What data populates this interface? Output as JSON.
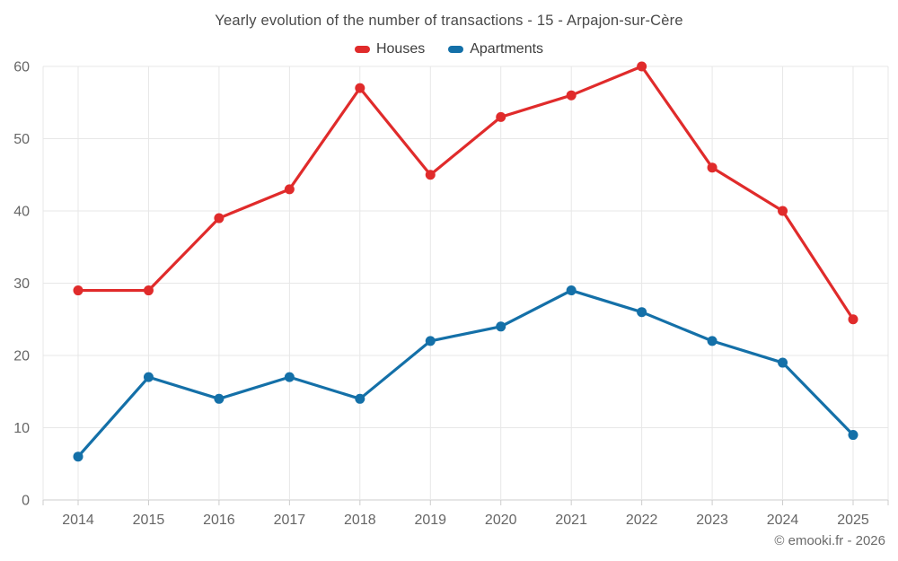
{
  "title": "Yearly evolution of the number of transactions - 15 - Arpajon-sur-Cère",
  "copyright": "© emooki.fr - 2026",
  "colors": {
    "houses": "#e02b2b",
    "apartments": "#1470a8",
    "title_text": "#4a4a4a",
    "legend_text": "#3d3d3d",
    "axis_text": "#666666",
    "gridline": "#e7e7e7",
    "axis_line": "#cccccc",
    "background": "#ffffff"
  },
  "chart_data": {
    "type": "line",
    "title": "Yearly evolution of the number of transactions - 15 - Arpajon-sur-Cère",
    "categories": [
      "2014",
      "2015",
      "2016",
      "2017",
      "2018",
      "2019",
      "2020",
      "2021",
      "2022",
      "2023",
      "2024",
      "2025"
    ],
    "series": [
      {
        "name": "Houses",
        "color": "#e02b2b",
        "values": [
          29,
          29,
          39,
          43,
          57,
          45,
          53,
          56,
          60,
          46,
          40,
          25
        ]
      },
      {
        "name": "Apartments",
        "color": "#1470a8",
        "values": [
          6,
          17,
          14,
          17,
          14,
          22,
          24,
          29,
          26,
          22,
          19,
          9
        ]
      }
    ],
    "xlabel": "",
    "ylabel": "",
    "ylim": [
      0,
      60
    ],
    "yticks": [
      0,
      10,
      20,
      30,
      40,
      50,
      60
    ],
    "grid": true,
    "markers": true,
    "legend_position": "top"
  }
}
